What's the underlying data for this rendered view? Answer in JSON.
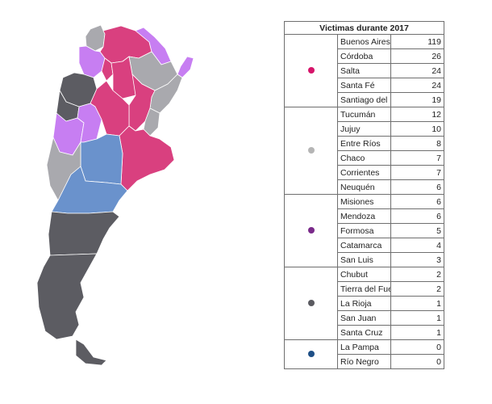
{
  "table": {
    "title": "Victimas durante 2017",
    "groups": [
      {
        "color": "#d6146a",
        "rows": [
          {
            "province": "Buenos Aires",
            "value": "119"
          },
          {
            "province": "Córdoba",
            "value": "26"
          },
          {
            "province": "Salta",
            "value": "24"
          },
          {
            "province": "Santa Fé",
            "value": "24"
          },
          {
            "province": "Santiago del Estero",
            "value": "19"
          }
        ]
      },
      {
        "color": "#b5b5b5",
        "rows": [
          {
            "province": "Tucumán",
            "value": "12"
          },
          {
            "province": "Jujuy",
            "value": "10"
          },
          {
            "province": "Entre Ríos",
            "value": "8"
          },
          {
            "province": "Chaco",
            "value": "7"
          },
          {
            "province": "Corrientes",
            "value": "7"
          },
          {
            "province": "Neuquén",
            "value": "6"
          }
        ]
      },
      {
        "color": "#7a2a8a",
        "rows": [
          {
            "province": "Misiones",
            "value": "6"
          },
          {
            "province": "Mendoza",
            "value": "6"
          },
          {
            "province": "Formosa",
            "value": "5"
          },
          {
            "province": "Catamarca",
            "value": "4"
          },
          {
            "province": "San Luis",
            "value": "3"
          }
        ]
      },
      {
        "color": "#5a5a60",
        "rows": [
          {
            "province": "Chubut",
            "value": "2"
          },
          {
            "province": "Tierra del Fuego",
            "value": "2"
          },
          {
            "province": "La Rioja",
            "value": "1"
          },
          {
            "province": "San Juan",
            "value": "1"
          },
          {
            "province": "Santa Cruz",
            "value": "1"
          }
        ]
      },
      {
        "color": "#1e4f86",
        "rows": [
          {
            "province": "La Pampa",
            "value": "0"
          },
          {
            "province": "Río Negro",
            "value": "0"
          }
        ]
      }
    ]
  },
  "map_colors": {
    "high": "#d9407f",
    "medium": "#a9a9ae",
    "low": "#c77ef2",
    "very_low": "#5c5c62",
    "zero": "#6a92cc"
  }
}
